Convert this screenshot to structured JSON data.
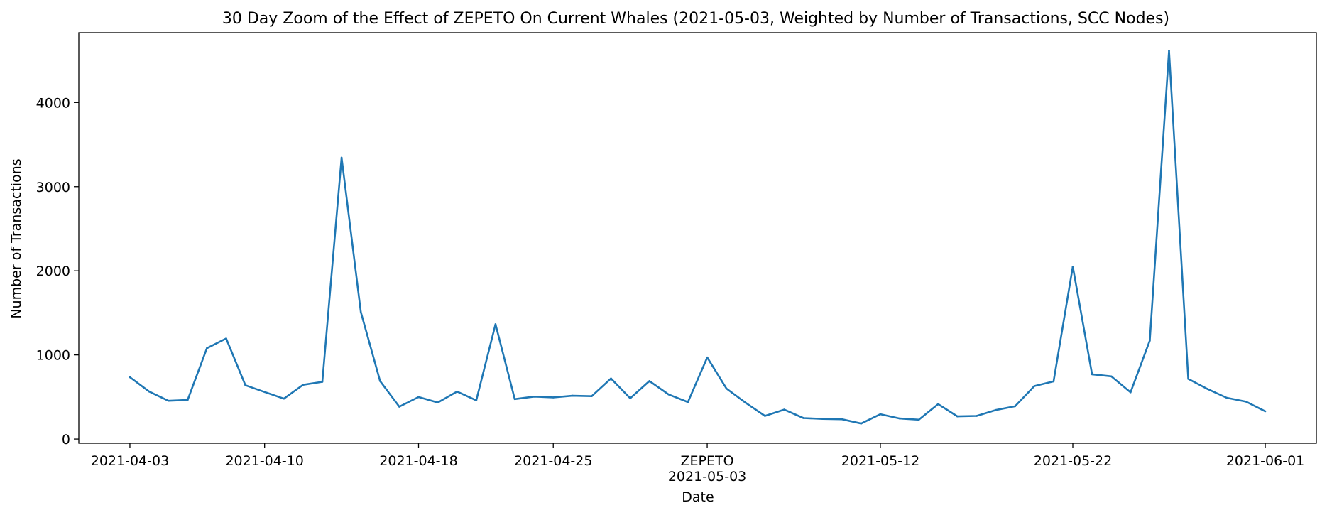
{
  "chart_data": {
    "type": "line",
    "title": "30 Day Zoom of the Effect of ZEPETO On Current Whales (2021-05-03, Weighted by Number of Transactions, SCC Nodes)",
    "xlabel": "Date",
    "ylabel": "Number of Transactions",
    "ylim": [
      -50,
      4830
    ],
    "y_ticks": [
      0,
      1000,
      2000,
      3000,
      4000
    ],
    "x_ticks": [
      {
        "date": "2021-04-03",
        "label": "2021-04-03"
      },
      {
        "date": "2021-04-10",
        "label": "2021-04-10"
      },
      {
        "date": "2021-04-18",
        "label": "2021-04-18"
      },
      {
        "date": "2021-04-25",
        "label": "2021-04-25"
      },
      {
        "date": "2021-05-03",
        "label": "2021-05-03"
      },
      {
        "date": "2021-05-12",
        "label": "2021-05-12"
      },
      {
        "date": "2021-05-22",
        "label": "2021-05-22"
      },
      {
        "date": "2021-06-01",
        "label": "2021-06-01"
      }
    ],
    "annotations": [
      {
        "date": "2021-05-03",
        "text": "ZEPETO"
      }
    ],
    "grid": false,
    "line_color": "#1f77b4",
    "series": [
      {
        "x": [
          "2021-04-03",
          "2021-04-04",
          "2021-04-05",
          "2021-04-06",
          "2021-04-07",
          "2021-04-08",
          "2021-04-09",
          "2021-04-10",
          "2021-04-11",
          "2021-04-12",
          "2021-04-13",
          "2021-04-14",
          "2021-04-15",
          "2021-04-16",
          "2021-04-17",
          "2021-04-18",
          "2021-04-19",
          "2021-04-20",
          "2021-04-21",
          "2021-04-22",
          "2021-04-23",
          "2021-04-24",
          "2021-04-25",
          "2021-04-26",
          "2021-04-27",
          "2021-04-28",
          "2021-04-29",
          "2021-04-30",
          "2021-05-01",
          "2021-05-02",
          "2021-05-03",
          "2021-05-04",
          "2021-05-05",
          "2021-05-06",
          "2021-05-07",
          "2021-05-08",
          "2021-05-09",
          "2021-05-10",
          "2021-05-11",
          "2021-05-12",
          "2021-05-13",
          "2021-05-14",
          "2021-05-15",
          "2021-05-16",
          "2021-05-17",
          "2021-05-18",
          "2021-05-19",
          "2021-05-20",
          "2021-05-21",
          "2021-05-22",
          "2021-05-23",
          "2021-05-24",
          "2021-05-25",
          "2021-05-26",
          "2021-05-27",
          "2021-05-28",
          "2021-05-29",
          "2021-05-30",
          "2021-05-31",
          "2021-06-01"
        ],
        "values": [
          735,
          565,
          455,
          465,
          1080,
          1195,
          640,
          560,
          480,
          645,
          680,
          3345,
          1510,
          690,
          385,
          500,
          435,
          565,
          460,
          1365,
          475,
          505,
          495,
          515,
          510,
          720,
          485,
          690,
          530,
          440,
          970,
          600,
          430,
          275,
          350,
          250,
          240,
          235,
          185,
          295,
          245,
          230,
          415,
          270,
          275,
          345,
          390,
          630,
          685,
          2050,
          770,
          745,
          555,
          1170,
          4615,
          715,
          595,
          490,
          445,
          330
        ]
      }
    ]
  }
}
